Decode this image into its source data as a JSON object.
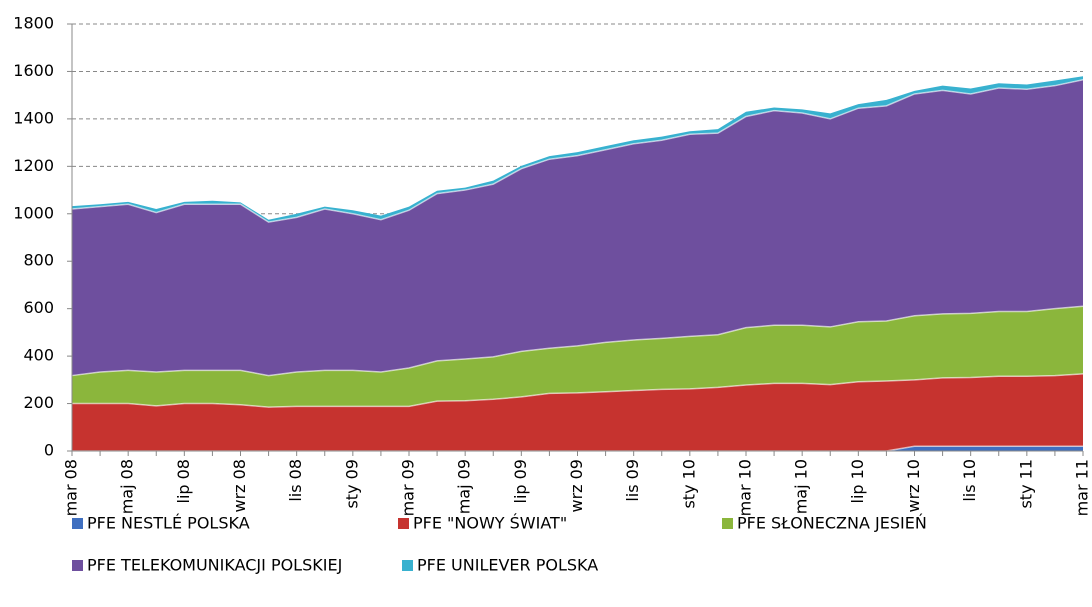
{
  "chart_data": {
    "type": "stacked_area",
    "categories": [
      "mar 08",
      null,
      "maj 08",
      null,
      "lip 08",
      null,
      "wrz 08",
      null,
      "lis 08",
      null,
      "sty 09",
      null,
      "mar 09",
      null,
      "maj 09",
      null,
      "lip 09",
      null,
      "wrz 09",
      null,
      "lis 09",
      null,
      "sty 10",
      null,
      "mar 10",
      null,
      "maj 10",
      null,
      "lip 10",
      null,
      "wrz 10",
      null,
      "lis 10",
      null,
      "sty 11",
      null,
      "mar 11"
    ],
    "series": [
      {
        "name": "PFE NESTLÉ POLSKA",
        "color": "#3f6fc0",
        "values": [
          0,
          0,
          0,
          0,
          0,
          0,
          0,
          0,
          0,
          0,
          0,
          0,
          0,
          0,
          0,
          0,
          0,
          0,
          0,
          0,
          0,
          0,
          0,
          0,
          0,
          0,
          0,
          0,
          0,
          0,
          20,
          20,
          20,
          20,
          20,
          20,
          20
        ]
      },
      {
        "name": "PFE \"NOWY ŚWIAT\"",
        "color": "#c6332f",
        "values": [
          200,
          200,
          200,
          190,
          200,
          200,
          195,
          185,
          188,
          188,
          188,
          188,
          188,
          210,
          212,
          218,
          228,
          243,
          245,
          250,
          255,
          260,
          262,
          268,
          278,
          285,
          285,
          280,
          292,
          295,
          280,
          288,
          290,
          295,
          295,
          298,
          305
        ]
      },
      {
        "name": "PFE SŁONECZNA JESIEŃ",
        "color": "#8bb63c",
        "values": [
          118,
          133,
          140,
          143,
          140,
          140,
          145,
          133,
          145,
          152,
          152,
          145,
          162,
          170,
          176,
          179,
          192,
          190,
          198,
          208,
          213,
          215,
          221,
          222,
          242,
          245,
          245,
          243,
          253,
          253,
          270,
          270,
          270,
          273,
          273,
          282,
          285
        ]
      },
      {
        "name": "PFE TELEKOMUNIKACJI POLSKIEJ",
        "color": "#6e4f9e",
        "values": [
          702,
          697,
          700,
          672,
          700,
          700,
          700,
          647,
          652,
          680,
          660,
          642,
          665,
          705,
          712,
          728,
          770,
          797,
          802,
          812,
          827,
          835,
          852,
          850,
          890,
          905,
          895,
          877,
          900,
          907,
          935,
          942,
          925,
          942,
          937,
          940,
          955
        ]
      },
      {
        "name": "PFE UNILEVER POLSKA",
        "color": "#38b1cf",
        "values": [
          12,
          10,
          10,
          15,
          10,
          15,
          8,
          10,
          15,
          10,
          15,
          17,
          15,
          12,
          10,
          15,
          12,
          13,
          15,
          15,
          15,
          15,
          13,
          17,
          20,
          13,
          15,
          23,
          17,
          25,
          13,
          20,
          23,
          20,
          20,
          22,
          15
        ]
      }
    ],
    "ylim": [
      0,
      1800
    ],
    "yticks": [
      0,
      200,
      400,
      600,
      800,
      1000,
      1200,
      1400,
      1600,
      1800
    ],
    "grid": true
  }
}
